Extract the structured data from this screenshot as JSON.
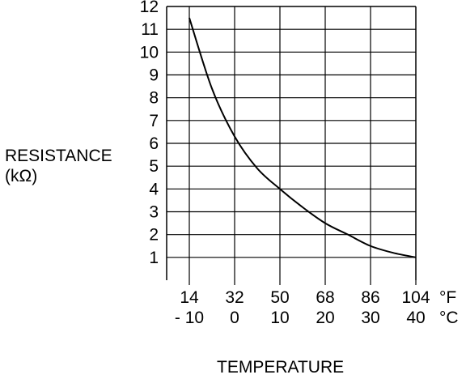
{
  "chart_data": {
    "type": "line",
    "title": "",
    "ylabel": "RESISTANCE",
    "ylabel_unit": "(kΩ)",
    "xlabel": "TEMPERATURE",
    "y_ticks": [
      "1",
      "2",
      "3",
      "4",
      "5",
      "6",
      "7",
      "8",
      "9",
      "10",
      "11",
      "12"
    ],
    "ylim": [
      0,
      12
    ],
    "x_ticks_f": [
      "14",
      "32",
      "50",
      "68",
      "86",
      "104"
    ],
    "x_ticks_c": [
      "- 10",
      "0",
      "10",
      "20",
      "30",
      "40"
    ],
    "x_unit_f": "°F",
    "x_unit_c": "°C",
    "xlim_c": [
      -15,
      40
    ],
    "grid": true,
    "series": [
      {
        "x": [
          -10,
          -5,
          0,
          5,
          10,
          15,
          20,
          25,
          30,
          35,
          40
        ],
        "y": [
          11.5,
          8.4,
          6.3,
          4.9,
          4.0,
          3.2,
          2.5,
          2.0,
          1.5,
          1.2,
          1.0
        ]
      }
    ]
  }
}
